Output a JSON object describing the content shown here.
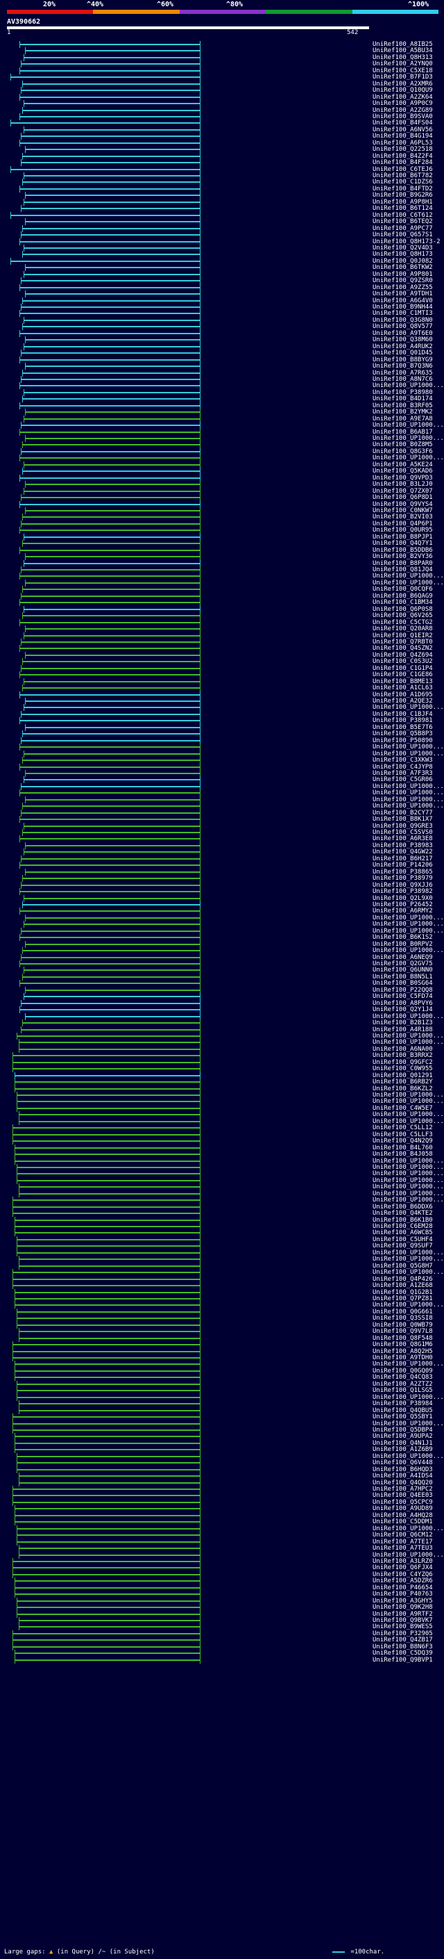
{
  "query": {
    "id": "AV390662",
    "start": "1",
    "end": "542"
  },
  "scale": {
    "ticks": [
      "20%",
      "^40%",
      "^60%",
      "^80%",
      "^100%"
    ],
    "colors": [
      "#dd1111",
      "#ee8800",
      "#8833cc",
      "#119933",
      "#33ccee"
    ]
  },
  "footer": {
    "large_gaps_text": "Large gaps:",
    "query_gap": "(in Query)",
    "subject_gap": "(in Subject)",
    "legend_text": "=100char."
  },
  "colors": {
    "cyan": "#33ccdd",
    "green": "#44bb22"
  },
  "hits": [
    "UniRef100_A8IB25",
    "UniRef100_A5BU34",
    "UniRef100_Q8H313",
    "UniRef100_A2YNQ0",
    "UniRef100_C5XE18",
    "UniRef100_B7F1D3",
    "UniRef100_A2XMR6",
    "UniRef100_Q10QU9",
    "UniRef100_A2ZK64",
    "UniRef100_A9P0C9",
    "UniRef100_A2ZG89",
    "UniRef100_B9SVA0",
    "UniRef100_B4FS04",
    "UniRef100_A6NV56",
    "UniRef100_B4G194",
    "UniRef100_A6PL53",
    "UniRef100_Q22518",
    "UniRef100_B4Z2F4",
    "UniRef100_B4F284",
    "UniRef100_C6TEJ6",
    "UniRef100_B6T782",
    "UniRef100_C1DZS6",
    "UniRef100_B4FTD2",
    "UniRef100_B9G2R6",
    "UniRef100_A9P8H1",
    "UniRef100_B6T124",
    "UniRef100_C6T612",
    "UniRef100_B6TEQ2",
    "UniRef100_A9PC77",
    "UniRef100_Q657S1",
    "UniRef100_Q8H173-2",
    "UniRef100_Q2V4D3",
    "UniRef100_Q8H173",
    "UniRef100_Q0J082",
    "UniRef100_B6TKW2",
    "UniRef100_A9P801",
    "UniRef100_Q9ZSR0",
    "UniRef100_A9ZZ55",
    "UniRef100_A9TDH1",
    "UniRef100_A6G4V0",
    "UniRef100_B9NH44",
    "UniRef100_C1MTI3",
    "UniRef100_Q3G8N0",
    "UniRef100_Q8V577",
    "UniRef100_A9T6E0",
    "UniRef100_Q38M60",
    "UniRef100_A4RUK2",
    "UniRef100_Q01D45",
    "UniRef100_B8BYG9",
    "UniRef100_B7Q3N6",
    "UniRef100_A7R635",
    "UniRef100_A8N7C6",
    "UniRef100_UP1000...",
    "UniRef100_P38980",
    "UniRef100_B4D174",
    "UniRef100_B3RF05",
    "UniRef100_B2YMK2",
    "UniRef100_A9E7A8",
    "UniRef100_UP1000...",
    "UniRef100_B6AB17",
    "UniRef100_UP1000...",
    "UniRef100_B0Z8M5",
    "UniRef100_Q8G3F6",
    "UniRef100_UP1000...",
    "UniRef100_A5KE24",
    "UniRef100_Q5KAD6",
    "UniRef100_Q9VPD3",
    "UniRef100_B3L2J0",
    "UniRef100_Q7ZX07",
    "UniRef100_Q6P8D1",
    "UniRef100_Q9VYS4",
    "UniRef100_C0NKW7",
    "UniRef100_B2VI03",
    "UniRef100_Q4P6P1",
    "UniRef100_Q0UR95",
    "UniRef100_B8PJP1",
    "UniRef100_Q4Q7Y1",
    "UniRef100_B5DDB6",
    "UniRef100_B2VY36",
    "UniRef100_B8PAR0",
    "UniRef100_Q81JQ4",
    "UniRef100_UP1000...",
    "UniRef100_UP1000...",
    "UniRef100_Q0CQF6",
    "UniRef100_B6QAG9",
    "UniRef100_C1BM34",
    "UniRef100_Q6P0S8",
    "UniRef100_Q6V265",
    "UniRef100_C5CTG2",
    "UniRef100_Q20AR8",
    "UniRef100_Q1EIR2",
    "UniRef100_Q7RBT0",
    "UniRef100_Q4SZN2",
    "UniRef100_Q4Z694",
    "UniRef100_C0S3U2",
    "UniRef100_C1G1P4",
    "UniRef100_C1GE86",
    "UniRef100_B8ME13",
    "UniRef100_A1CL63",
    "UniRef100_A1D695",
    "UniRef100_A2QE32",
    "UniRef100_UP1000...",
    "UniRef100_C1BJF4",
    "UniRef100_P38981",
    "UniRef100_B5E7T6",
    "UniRef100_Q5B8P3",
    "UniRef100_P50890",
    "UniRef100_UP1000...",
    "UniRef100_UP1000...",
    "UniRef100_C3XKW3",
    "UniRef100_C4JYP8",
    "UniRef100_A7F3R3",
    "UniRef100_C5GR06",
    "UniRef100_UP1000...",
    "UniRef100_UP1000...",
    "UniRef100_UP1000...",
    "UniRef100_UP1000...",
    "UniRef100_B2CY77",
    "UniRef100_B8K1X7",
    "UniRef100_Q9GRE3",
    "UniRef100_C5SVS0",
    "UniRef100_A6R3E8",
    "UniRef100_P38983",
    "UniRef100_Q4GW22",
    "UniRef100_B6H217",
    "UniRef100_P14206",
    "UniRef100_P38865",
    "UniRef100_P38979",
    "UniRef100_Q9XJJ6",
    "UniRef100_P38982",
    "UniRef100_Q2L9X0",
    "UniRef100_P26452",
    "UniRef100_A6RMY2",
    "UniRef100_UP1000...",
    "UniRef100_UP1000...",
    "UniRef100_UP1000...",
    "UniRef100_B6K1S2",
    "UniRef100_B0RPV2",
    "UniRef100_UP1000...",
    "UniRef100_A6NEQ9",
    "UniRef100_Q2GV75",
    "UniRef100_Q6UNN0",
    "UniRef100_B8N5L1",
    "UniRef100_B0SG64",
    "UniRef100_P22QQ8",
    "UniRef100_C5FD74",
    "UniRef100_A8PVY6",
    "UniRef100_Q2Y1J4",
    "UniRef100_UP1000...",
    "UniRef100_B2B1Z3",
    "UniRef100_A4R188",
    "UniRef100_UP1000...",
    "UniRef100_UP1000...",
    "UniRef100_A6NA00",
    "UniRef100_B3RRX2",
    "UniRef100_Q9GFC2",
    "UniRef100_C0W955",
    "UniRef100_Q01291",
    "UniRef100_B6RB2Y",
    "UniRef100_B6KZL2",
    "UniRef100_UP1000...",
    "UniRef100_UP1000...",
    "UniRef100_C4W5E7",
    "UniRef100_UP1000...",
    "UniRef100_UP1000...",
    "UniRef100_C5LL12",
    "UniRef100_C5LLF3",
    "UniRef100_Q4N2Q9",
    "UniRef100_B4L760",
    "UniRef100_B4J058",
    "UniRef100_UP1000...",
    "UniRef100_UP1000...",
    "UniRef100_UP1000...",
    "UniRef100_UP1000...",
    "UniRef100_UP1000...",
    "UniRef100_UP1000...",
    "UniRef100_UP1000...",
    "UniRef100_B6DDX6",
    "UniRef100_Q4KTE2",
    "UniRef100_B6K1B0",
    "UniRef100_C6EM28",
    "UniRef100_A6WCB5",
    "UniRef100_C5UHF4",
    "UniRef100_Q9SUF7",
    "UniRef100_UP1000...",
    "UniRef100_UP1000...",
    "UniRef100_Q5G8H7",
    "UniRef100_UP1000...",
    "UniRef100_Q4P426",
    "UniRef100_A1ZE68",
    "UniRef100_Q1G2B1",
    "UniRef100_Q7PZ81",
    "UniRef100_UP1000...",
    "UniRef100_Q0G661",
    "UniRef100_Q3SSI8",
    "UniRef100_Q0WB79",
    "UniRef100_Q9V7L8",
    "UniRef100_Q8F548",
    "UniRef100_Q8G1M6",
    "UniRef100_A8Q2H5",
    "UniRef100_A9TDH0",
    "UniRef100_UP1000...",
    "UniRef100_Q0GQ09",
    "UniRef100_Q4CQ83",
    "UniRef100_A2ZTZ2",
    "UniRef100_Q1LSG5",
    "UniRef100_UP1000...",
    "UniRef100_P38984",
    "UniRef100_Q4QBU5",
    "UniRef100_Q5SBY1",
    "UniRef100_UP1000...",
    "UniRef100_Q5DBP4",
    "UniRef100_A9UPA2",
    "UniRef100_Q4N1J1",
    "UniRef100_A1Z6B9",
    "UniRef100_UP1000...",
    "UniRef100_Q6V448",
    "UniRef100_B6HQD3",
    "UniRef100_A4IDS4",
    "UniRef100_Q4QQ20",
    "UniRef100_A7HPC2",
    "UniRef100_Q4EE03",
    "UniRef100_Q5CPC9",
    "UniRef100_A9UD89",
    "UniRef100_A4HQ28",
    "UniRef100_C5DDM1",
    "UniRef100_UP1000...",
    "UniRef100_Q6CM12",
    "UniRef100_A7TE17",
    "UniRef100_A7TEU3",
    "UniRef100_UP1000...",
    "UniRef100_A3LRZ0",
    "UniRef100_Q6FJX4",
    "UniRef100_C4YZQ6",
    "UniRef100_A5DZR6",
    "UniRef100_P46654",
    "UniRef100_P40763",
    "UniRef100_A3GHY5",
    "UniRef100_Q9K2H8",
    "UniRef100_A9RTF2",
    "UniRef100_Q9BVK7",
    "UniRef100_B9WES5",
    "UniRef100_P32905",
    "UniRef100_Q4ZB17",
    "UniRef100_B8N6F3",
    "UniRef100_C5DQ39",
    "UniRef100_Q9BVP1"
  ]
}
